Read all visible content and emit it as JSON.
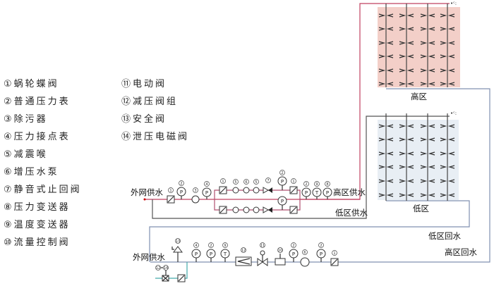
{
  "legend": [
    "①蜗轮蝶阀",
    "②普通压力表",
    "③除污器",
    "④压力接点表",
    "⑤减震喉",
    "⑥增压水泵",
    "⑦静音式止回阀",
    "⑧压力变送器",
    "⑨温度变送器",
    "⑩流量控制阀",
    "⑪电动阀",
    "⑫减压阀组",
    "⑬安全阀",
    "⑭泄压电磁阀"
  ],
  "labels": {
    "supply_in_top": "外网供水",
    "high_supply": "高区供水",
    "low_supply": "低区供水",
    "high_zone": "高区",
    "low_zone": "低区",
    "low_return": "低区回水",
    "high_return": "高区回水",
    "supply_in_bottom": "外网供水"
  },
  "gauge_letters": {
    "pressure": "P",
    "temperature": "T"
  },
  "colors": {
    "high_zone_bg": "#f3cfc8",
    "low_zone_bg": "#e8eef4",
    "pipe": "#555555",
    "supply_pipe": "#c04060",
    "return_pipe": "#8090b0"
  }
}
